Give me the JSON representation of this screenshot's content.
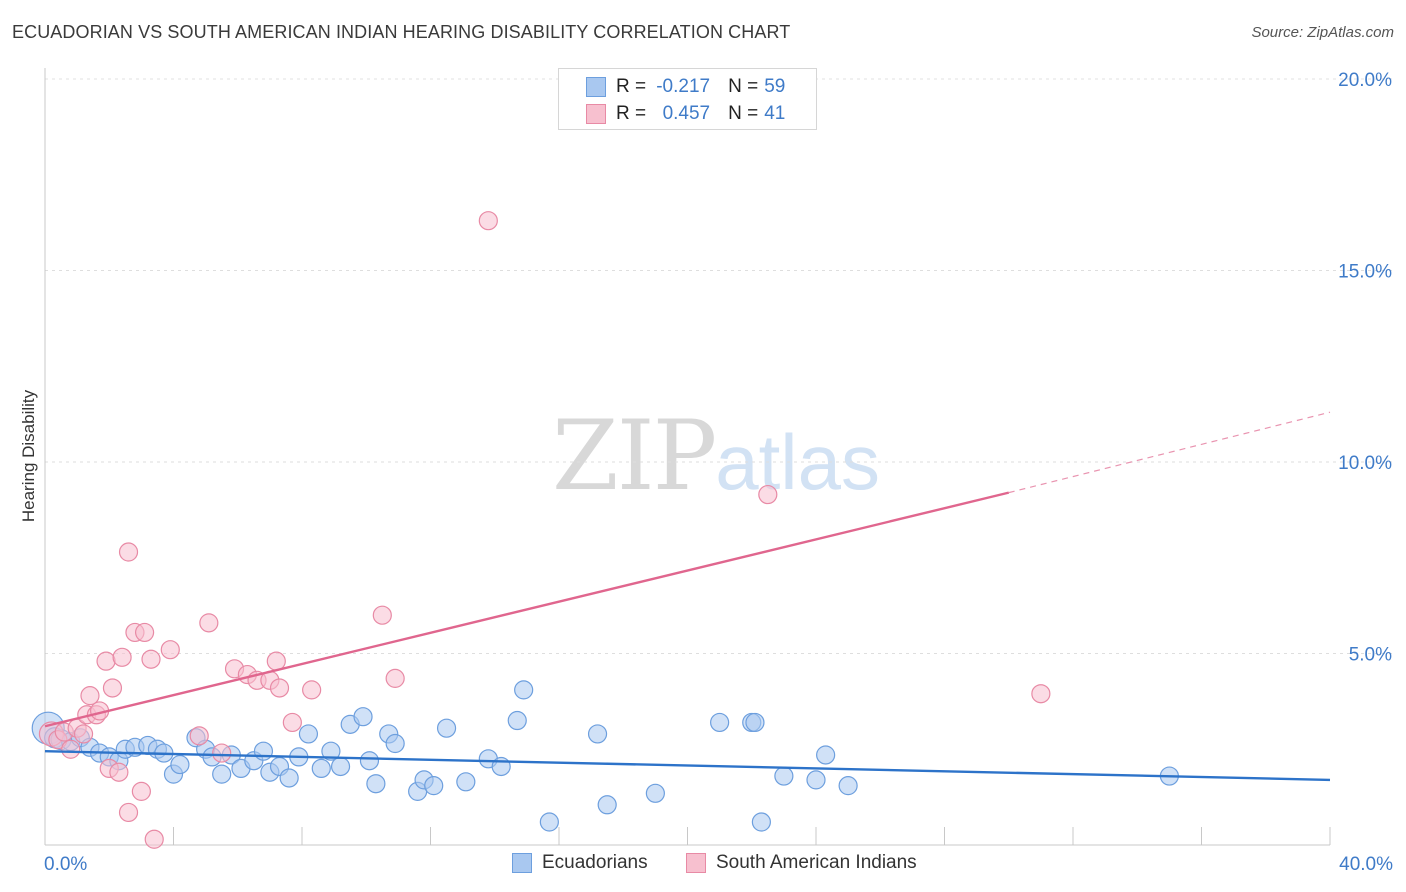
{
  "header": {
    "title": "ECUADORIAN VS SOUTH AMERICAN INDIAN HEARING DISABILITY CORRELATION CHART",
    "source": "Source: ZipAtlas.com"
  },
  "watermark": {
    "zip": "ZIP",
    "atlas": "atlas"
  },
  "legend": {
    "rows": [
      {
        "r_label": "R =",
        "r_value": "-0.217",
        "n_label": "N =",
        "n_value": "59",
        "color": "#a9c8f0",
        "border": "#6d9fde"
      },
      {
        "r_label": "R =",
        "r_value": "0.457",
        "n_label": "N =",
        "n_value": "41",
        "color": "#f7c0cf",
        "border": "#e88aa5"
      }
    ]
  },
  "bottom_legend": {
    "items": [
      {
        "label": "Ecuadorians",
        "color": "#a9c8f0",
        "border": "#6d9fde"
      },
      {
        "label": "South American Indians",
        "color": "#f7c0cf",
        "border": "#e88aa5"
      }
    ]
  },
  "chart_data": {
    "type": "scatter",
    "title": "ECUADORIAN VS SOUTH AMERICAN INDIAN HEARING DISABILITY CORRELATION CHART",
    "xlabel": "",
    "ylabel": "Hearing Disability",
    "xlim": [
      0,
      40
    ],
    "ylim": [
      0,
      20
    ],
    "x_tick_labels": [
      "0.0%",
      "40.0%"
    ],
    "y_ticks": [
      5,
      10,
      15,
      20
    ],
    "y_tick_labels": [
      "5.0%",
      "10.0%",
      "15.0%",
      "20.0%"
    ],
    "grid": true,
    "legend_position": "top-center",
    "series": [
      {
        "name": "Ecuadorians",
        "color": "#6d9fde",
        "fill": "#a9c8f0",
        "r": -0.217,
        "n": 59,
        "trend": {
          "x0": 0,
          "y0": 2.45,
          "x1": 40,
          "y1": 1.7
        },
        "points": [
          [
            0.1,
            3.05,
            16
          ],
          [
            0.3,
            2.8,
            10
          ],
          [
            0.5,
            2.75,
            10
          ],
          [
            0.8,
            2.7,
            9
          ],
          [
            1.1,
            2.8,
            9
          ],
          [
            1.4,
            2.55,
            9
          ],
          [
            1.7,
            2.4,
            9
          ],
          [
            2.0,
            2.3,
            9
          ],
          [
            2.3,
            2.2,
            9
          ],
          [
            2.5,
            2.5,
            9
          ],
          [
            2.8,
            2.55,
            9
          ],
          [
            3.2,
            2.6,
            9
          ],
          [
            3.5,
            2.5,
            9
          ],
          [
            3.7,
            2.4,
            9
          ],
          [
            4.0,
            1.85,
            9
          ],
          [
            4.2,
            2.1,
            9
          ],
          [
            4.7,
            2.8,
            9
          ],
          [
            5.0,
            2.5,
            9
          ],
          [
            5.2,
            2.3,
            9
          ],
          [
            5.5,
            1.85,
            9
          ],
          [
            5.8,
            2.35,
            9
          ],
          [
            6.1,
            2.0,
            9
          ],
          [
            6.5,
            2.2,
            9
          ],
          [
            6.8,
            2.45,
            9
          ],
          [
            7.0,
            1.9,
            9
          ],
          [
            7.3,
            2.05,
            9
          ],
          [
            7.6,
            1.75,
            9
          ],
          [
            7.9,
            2.3,
            9
          ],
          [
            8.2,
            2.9,
            9
          ],
          [
            8.6,
            2.0,
            9
          ],
          [
            8.9,
            2.45,
            9
          ],
          [
            9.2,
            2.05,
            9
          ],
          [
            9.5,
            3.15,
            9
          ],
          [
            9.9,
            3.35,
            9
          ],
          [
            10.1,
            2.2,
            9
          ],
          [
            10.3,
            1.6,
            9
          ],
          [
            10.7,
            2.9,
            9
          ],
          [
            10.9,
            2.65,
            9
          ],
          [
            11.6,
            1.4,
            9
          ],
          [
            11.8,
            1.7,
            9
          ],
          [
            12.1,
            1.55,
            9
          ],
          [
            12.5,
            3.05,
            9
          ],
          [
            13.1,
            1.65,
            9
          ],
          [
            13.8,
            2.25,
            9
          ],
          [
            14.2,
            2.05,
            9
          ],
          [
            14.7,
            3.25,
            9
          ],
          [
            14.9,
            4.05,
            9
          ],
          [
            15.7,
            0.6,
            9
          ],
          [
            17.2,
            2.9,
            9
          ],
          [
            17.5,
            1.05,
            9
          ],
          [
            19.0,
            1.35,
            9
          ],
          [
            21.0,
            3.2,
            9
          ],
          [
            22.0,
            3.2,
            9
          ],
          [
            22.1,
            3.2,
            9
          ],
          [
            22.3,
            0.6,
            9
          ],
          [
            23.0,
            1.8,
            9
          ],
          [
            24.0,
            1.7,
            9
          ],
          [
            24.3,
            2.35,
            9
          ],
          [
            25.0,
            1.55,
            9
          ],
          [
            35.0,
            1.8,
            9
          ]
        ]
      },
      {
        "name": "South American Indians",
        "color": "#e88aa5",
        "fill": "#f7c0cf",
        "r": 0.457,
        "n": 41,
        "trend": {
          "x0": 0,
          "y0": 3.1,
          "x1": 30,
          "y1": 9.2,
          "dash_to_x": 40,
          "dash_to_y": 11.3
        },
        "points": [
          [
            0.2,
            2.9,
            12
          ],
          [
            0.4,
            2.75,
            9
          ],
          [
            0.6,
            2.95,
            9
          ],
          [
            0.8,
            2.5,
            9
          ],
          [
            1.0,
            3.05,
            9
          ],
          [
            1.2,
            2.9,
            9
          ],
          [
            1.3,
            3.4,
            9
          ],
          [
            1.4,
            3.9,
            9
          ],
          [
            1.6,
            3.4,
            9
          ],
          [
            1.7,
            3.5,
            9
          ],
          [
            1.9,
            4.8,
            9
          ],
          [
            2.0,
            2.0,
            9
          ],
          [
            2.1,
            4.1,
            9
          ],
          [
            2.3,
            1.9,
            9
          ],
          [
            2.4,
            4.9,
            9
          ],
          [
            2.6,
            0.85,
            9
          ],
          [
            2.6,
            7.65,
            9
          ],
          [
            2.8,
            5.55,
            9
          ],
          [
            3.0,
            1.4,
            9
          ],
          [
            3.1,
            5.55,
            9
          ],
          [
            3.3,
            4.85,
            9
          ],
          [
            3.4,
            0.15,
            9
          ],
          [
            3.9,
            5.1,
            9
          ],
          [
            4.8,
            2.85,
            9
          ],
          [
            5.1,
            5.8,
            9
          ],
          [
            5.5,
            2.4,
            9
          ],
          [
            5.9,
            4.6,
            9
          ],
          [
            6.3,
            4.45,
            9
          ],
          [
            6.6,
            4.3,
            9
          ],
          [
            7.0,
            4.3,
            9
          ],
          [
            7.2,
            4.8,
            9
          ],
          [
            7.3,
            4.1,
            9
          ],
          [
            7.7,
            3.2,
            9
          ],
          [
            8.3,
            4.05,
            9
          ],
          [
            10.5,
            6.0,
            9
          ],
          [
            10.9,
            4.35,
            9
          ],
          [
            13.8,
            16.3,
            9
          ],
          [
            22.5,
            9.15,
            9
          ],
          [
            31.0,
            3.95,
            9
          ]
        ]
      }
    ]
  }
}
